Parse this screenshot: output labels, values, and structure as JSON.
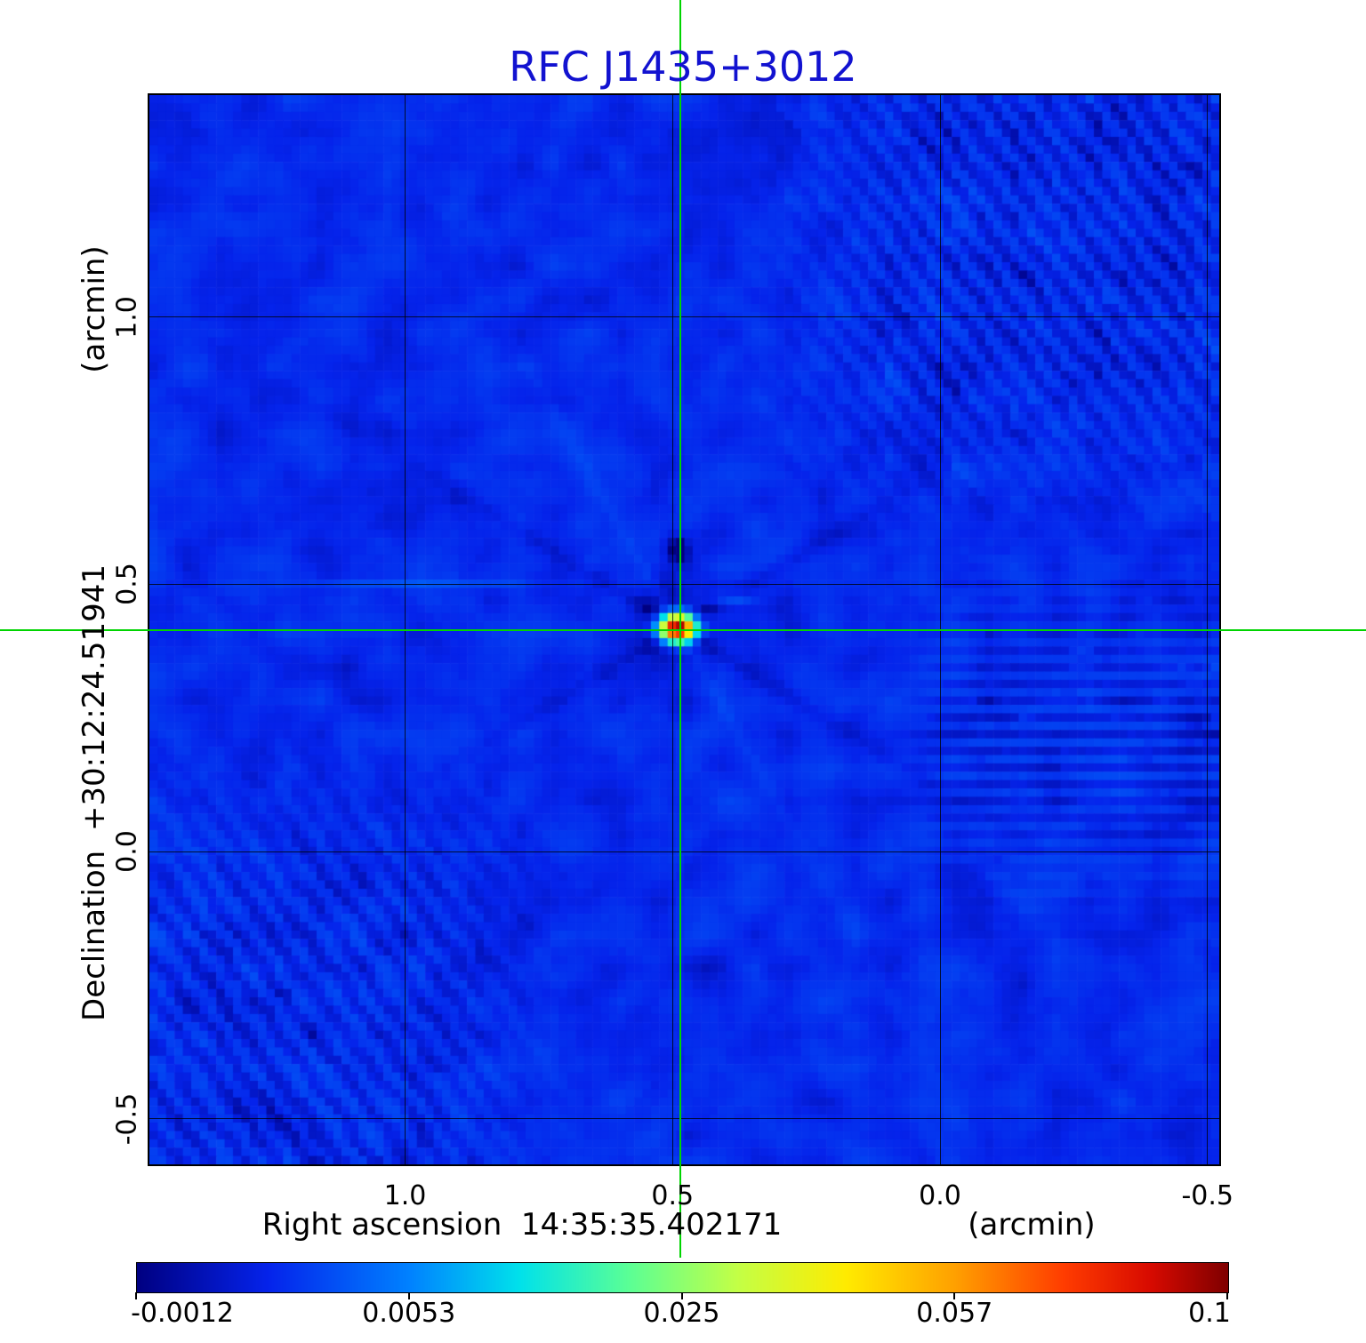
{
  "title": "RFC J1435+3012",
  "colors": {
    "title_blue": "#1212d0",
    "crosshair_green": "#00d400",
    "background_map_blue": "#0a28e6",
    "grid_black": "#000000"
  },
  "axes": {
    "x": {
      "title": "Right ascension  14:35:35.402171",
      "unit": "(arcmin)",
      "ticks": [
        "1.0",
        "0.5",
        "0.0",
        "-0.5"
      ]
    },
    "y": {
      "title": "Declination  +30:12:24.51941",
      "unit": "(arcmin)",
      "ticks": [
        "1.0",
        "0.5",
        "0.0",
        "-0.5"
      ]
    }
  },
  "colorbar": {
    "labels": [
      "-0.0012",
      "0.0053",
      "0.025",
      "0.057",
      "0.1"
    ]
  },
  "chart_data": {
    "type": "heatmap",
    "title": "RFC J1435+3012",
    "xlabel": "Right ascension 14:35:35.402171 (arcmin)",
    "ylabel": "Declination +30:12:24.51941 (arcmin)",
    "x_ticks_arcmin": [
      1.0,
      0.5,
      0.0,
      -0.5
    ],
    "y_ticks_arcmin": [
      1.0,
      0.5,
      0.0,
      -0.5
    ],
    "x_range_arcmin": [
      1.478,
      -0.522
    ],
    "y_range_arcmin": [
      1.415,
      -0.585
    ],
    "grid": true,
    "colormap": "jet",
    "intensity_scale": "sqrt",
    "colorbar_range": [
      -0.0012,
      0.1
    ],
    "colorbar_ticks": [
      -0.0012,
      0.0053,
      0.025,
      0.057,
      0.1
    ],
    "crosshair_arcmin": {
      "ra_offset": 0.485,
      "dec_offset": 0.415
    },
    "source": {
      "name": "RFC J1435+3012",
      "ra_offset_arcmin": 0.49,
      "dec_offset_arcmin": 0.418,
      "peak_intensity": 0.1,
      "shape": "compact elliptical gaussian, slightly wider in RA"
    },
    "background_level": 0.0005,
    "map_pixels": 128
  }
}
